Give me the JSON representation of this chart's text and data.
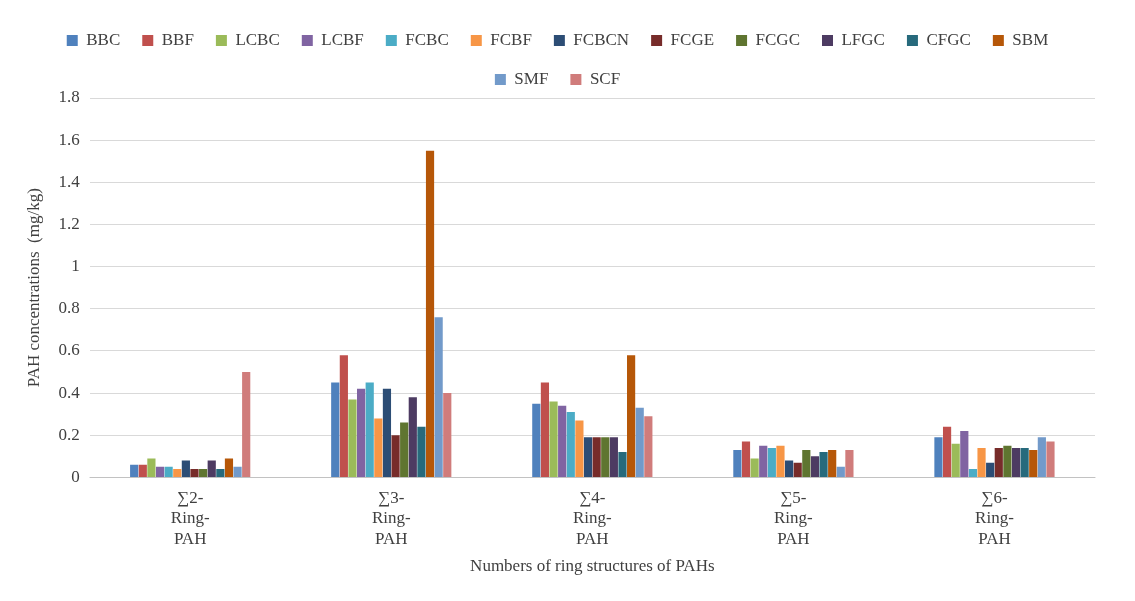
{
  "chart_data": {
    "type": "bar",
    "xlabel": "Numbers of ring structures of PAHs",
    "ylabel": "PAH concentrations  (mg/kg)",
    "categories": [
      "∑2-Ring-PAH",
      "∑3-Ring-PAH",
      "∑4-Ring-PAH",
      "∑5-Ring-PAH",
      "∑6-Ring-PAH"
    ],
    "ylim": [
      0,
      1.8
    ],
    "yticks": [
      0,
      0.2,
      0.4,
      0.6,
      0.8,
      1,
      1.2,
      1.4,
      1.6,
      1.8
    ],
    "grid": "y",
    "legend": "top",
    "series": [
      {
        "name": "BBC",
        "color": "#4f81bd",
        "values": [
          0.06,
          0.45,
          0.35,
          0.13,
          0.19
        ]
      },
      {
        "name": "BBF",
        "color": "#c0504d",
        "values": [
          0.06,
          0.58,
          0.45,
          0.17,
          0.24
        ]
      },
      {
        "name": "LCBC",
        "color": "#9bbb59",
        "values": [
          0.09,
          0.37,
          0.36,
          0.09,
          0.16
        ]
      },
      {
        "name": "LCBF",
        "color": "#8064a2",
        "values": [
          0.05,
          0.42,
          0.34,
          0.15,
          0.22
        ]
      },
      {
        "name": "FCBC",
        "color": "#4bacc6",
        "values": [
          0.05,
          0.45,
          0.31,
          0.14,
          0.04
        ]
      },
      {
        "name": "FCBF",
        "color": "#f79646",
        "values": [
          0.04,
          0.28,
          0.27,
          0.15,
          0.14
        ]
      },
      {
        "name": "FCBCN",
        "color": "#2c4d75",
        "values": [
          0.08,
          0.42,
          0.19,
          0.08,
          0.07
        ]
      },
      {
        "name": "FCGE",
        "color": "#772c2a",
        "values": [
          0.04,
          0.2,
          0.19,
          0.07,
          0.14
        ]
      },
      {
        "name": "FCGC",
        "color": "#5f7530",
        "values": [
          0.04,
          0.26,
          0.19,
          0.13,
          0.15
        ]
      },
      {
        "name": "LFGC",
        "color": "#4d3b62",
        "values": [
          0.08,
          0.38,
          0.19,
          0.1,
          0.14
        ]
      },
      {
        "name": "CFGC",
        "color": "#276a7c",
        "values": [
          0.04,
          0.24,
          0.12,
          0.12,
          0.14
        ]
      },
      {
        "name": "SBM",
        "color": "#b65708",
        "values": [
          0.09,
          1.55,
          0.58,
          0.13,
          0.13
        ]
      },
      {
        "name": "SMF",
        "color": "#729aca",
        "values": [
          0.05,
          0.76,
          0.33,
          0.05,
          0.19
        ]
      },
      {
        "name": "SCF",
        "color": "#d07c7b",
        "values": [
          0.5,
          0.4,
          0.29,
          0.13,
          0.17
        ]
      }
    ]
  }
}
